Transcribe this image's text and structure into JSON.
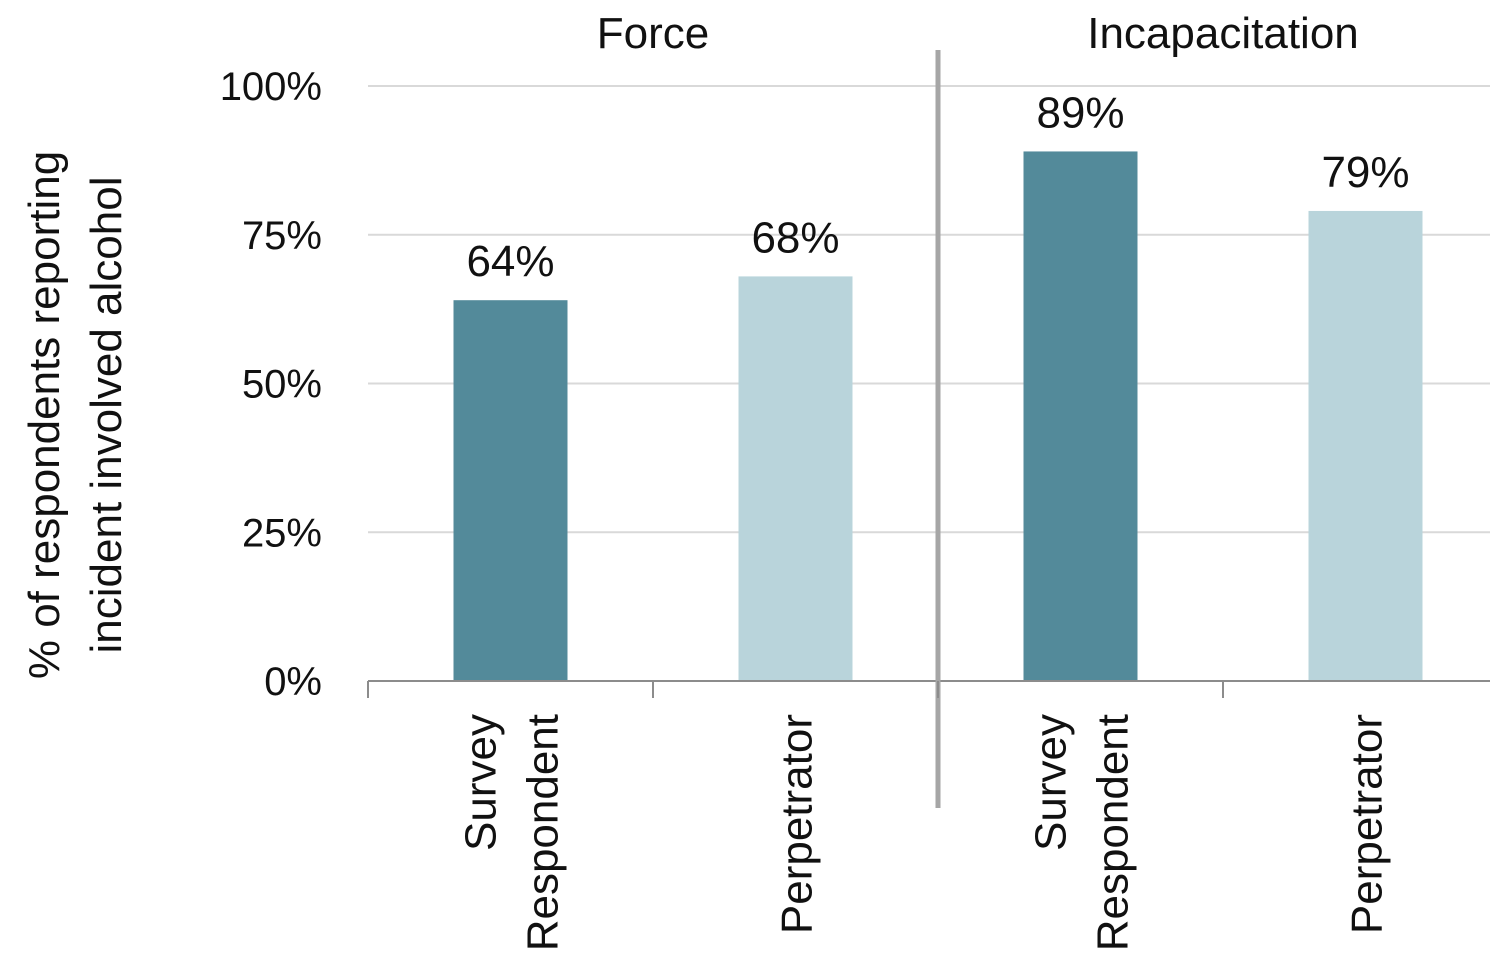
{
  "chart_data": {
    "type": "bar",
    "groups": [
      {
        "name": "Force",
        "categories": [
          "Survey Respondent",
          "Perpetrator"
        ],
        "values": [
          64,
          68
        ],
        "labels": [
          "64%",
          "68%"
        ]
      },
      {
        "name": "Incapacitation",
        "categories": [
          "Survey Respondent",
          "Perpetrator"
        ],
        "values": [
          89,
          79
        ],
        "labels": [
          "89%",
          "79%"
        ]
      }
    ],
    "category_lines": {
      "Survey Respondent": [
        "Survey",
        "Respondent"
      ],
      "Perpetrator": [
        "Perpetrator"
      ]
    },
    "ylabel": [
      "% of respondents reporting",
      "incident involved alcohol"
    ],
    "yticks": [
      0,
      25,
      50,
      75,
      100
    ],
    "ytick_labels": [
      "0%",
      "25%",
      "50%",
      "75%",
      "100%"
    ],
    "ylim": [
      0,
      100
    ],
    "grid": true,
    "colors": {
      "Survey Respondent": "#538a9a",
      "Perpetrator": "#b9d4db",
      "grid": "#d9d9d9",
      "axis": "#8c8c8c",
      "divider": "#a6a6a6"
    }
  }
}
